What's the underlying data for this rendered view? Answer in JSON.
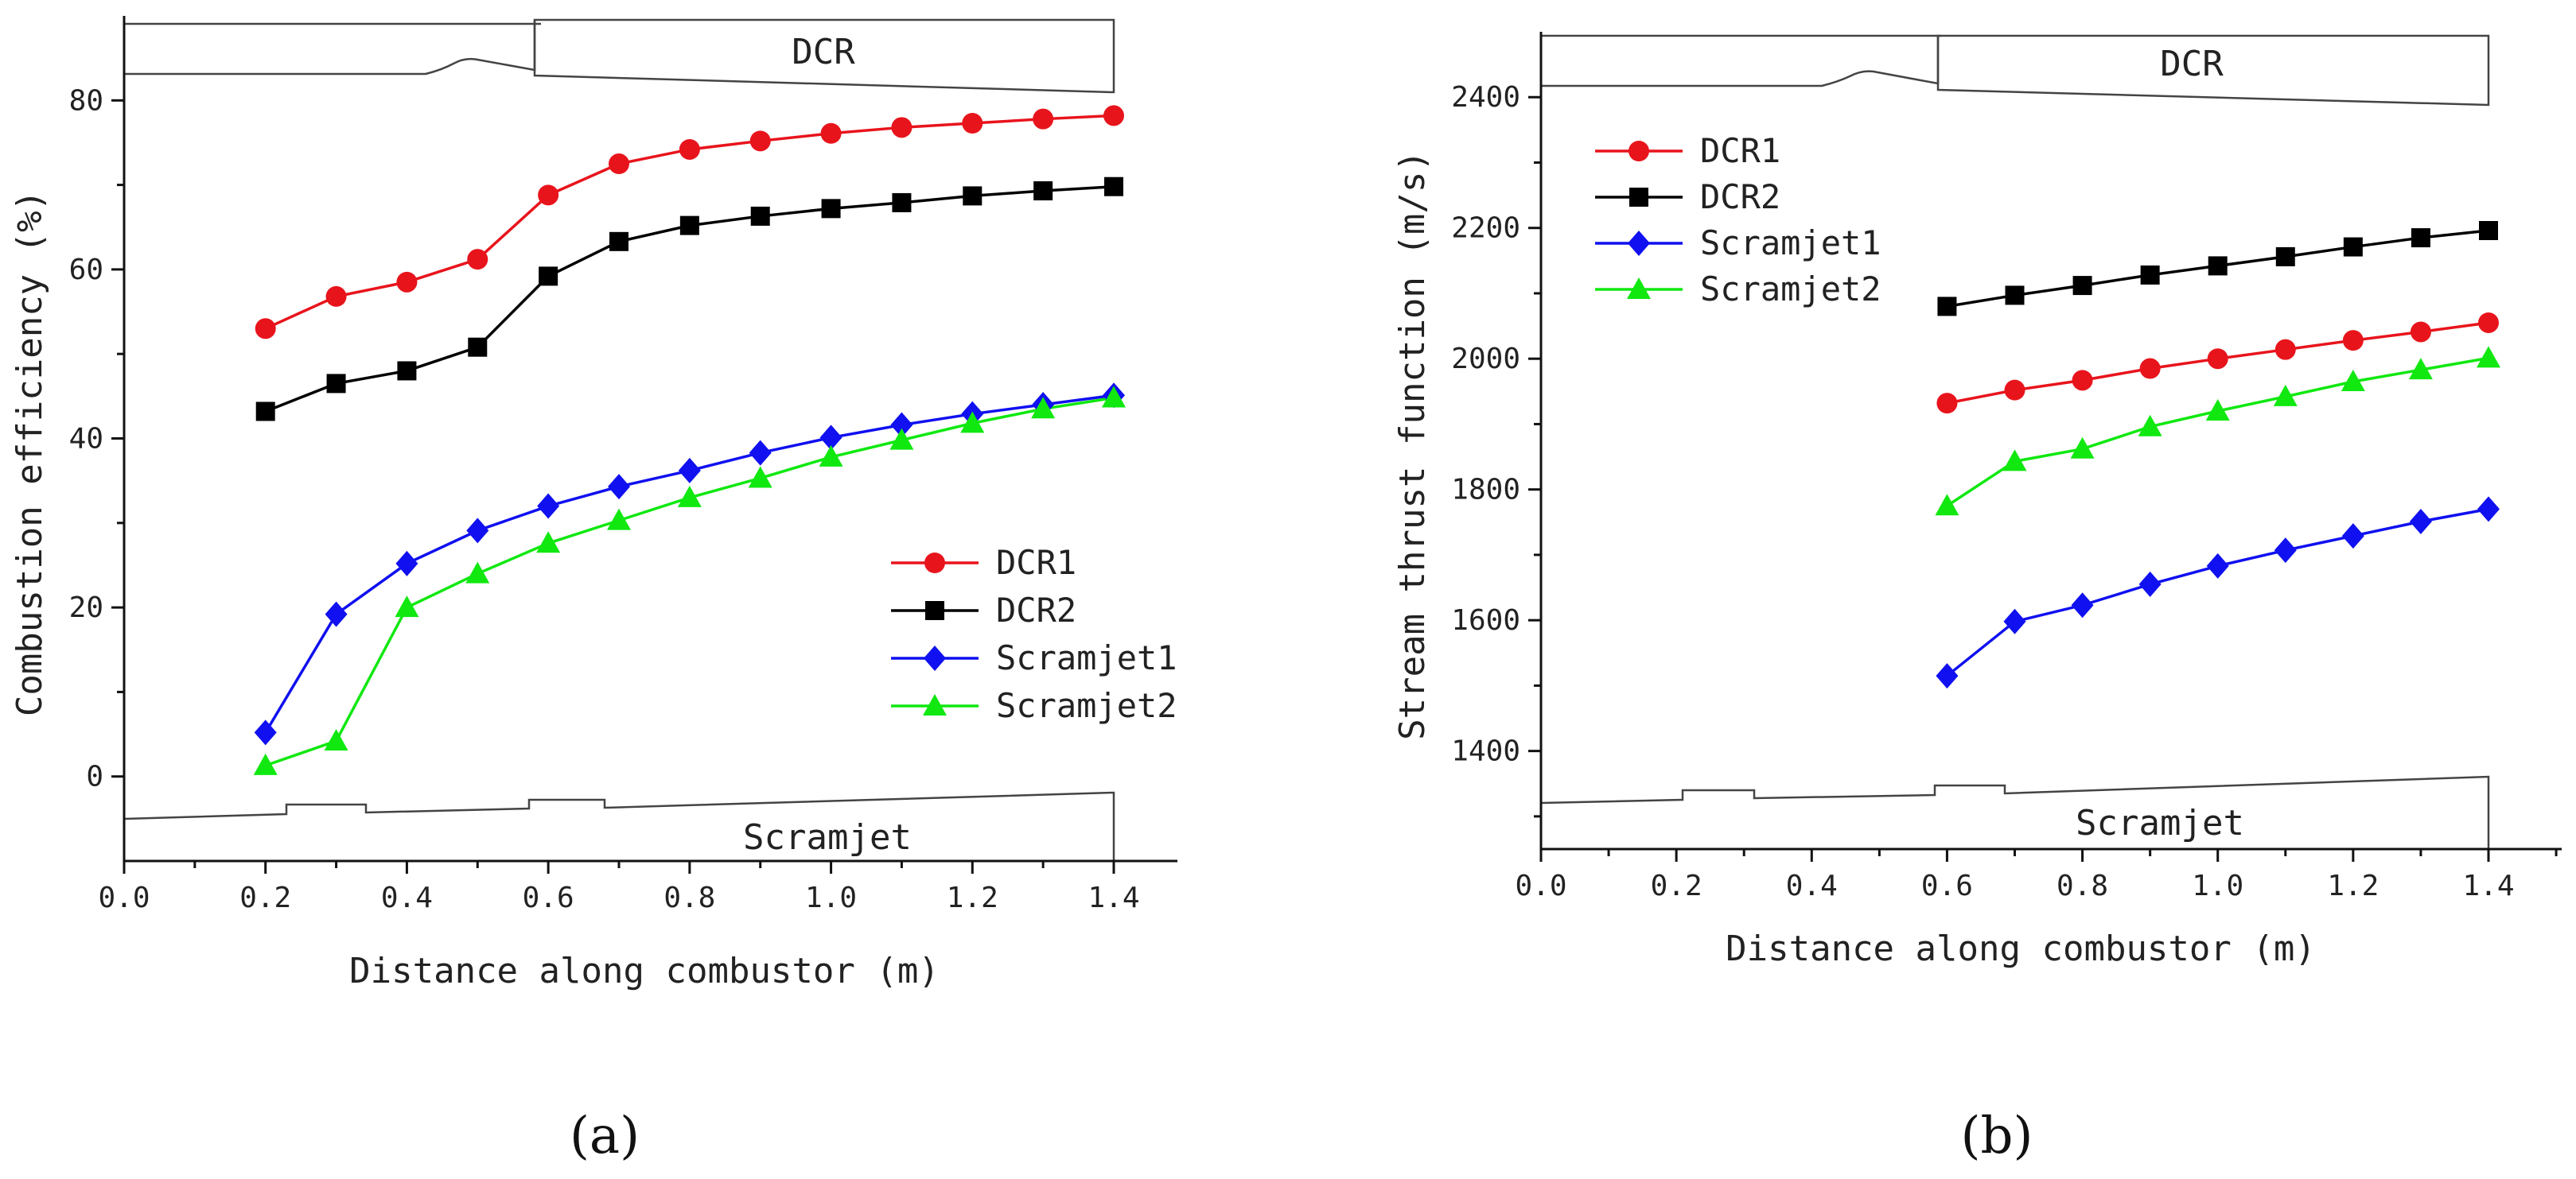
{
  "chart_data": [
    {
      "type": "line",
      "panel_label": "(a)",
      "xlabel": "Distance along combustor (m)",
      "ylabel": "Combustion efficiency (%)",
      "xlim": [
        0.0,
        1.5
      ],
      "ylim": [
        -10,
        90
      ],
      "xticks": [
        0.0,
        0.2,
        0.4,
        0.6,
        0.8,
        1.0,
        1.2,
        1.4
      ],
      "xtick_labels": [
        "0.0",
        "0.2",
        "0.4",
        "0.6",
        "0.8",
        "1.0",
        "1.2",
        "1.4"
      ],
      "yticks": [
        0,
        20,
        40,
        60,
        80
      ],
      "ytick_labels": [
        "0",
        "20",
        "40",
        "60",
        "80"
      ],
      "legend": "center-right",
      "geometry_labels": {
        "top": "DCR",
        "bottom": "Scramjet"
      },
      "x": [
        0.2,
        0.3,
        0.4,
        0.5,
        0.6,
        0.7,
        0.8,
        0.9,
        1.0,
        1.1,
        1.2,
        1.3,
        1.4
      ],
      "series": [
        {
          "name": "DCR1",
          "color": "#e8141c",
          "marker": "circle",
          "values": [
            53.0,
            56.8,
            58.5,
            61.2,
            68.8,
            72.5,
            74.2,
            75.2,
            76.1,
            76.8,
            77.3,
            77.8,
            78.2
          ]
        },
        {
          "name": "DCR2",
          "color": "#000000",
          "marker": "square",
          "values": [
            43.2,
            46.5,
            48.0,
            50.8,
            59.2,
            63.3,
            65.2,
            66.3,
            67.2,
            67.9,
            68.7,
            69.3,
            69.8
          ]
        },
        {
          "name": "Scramjet1",
          "color": "#1010f0",
          "marker": "diamond",
          "values": [
            5.2,
            19.2,
            25.2,
            29.1,
            32.0,
            34.3,
            36.2,
            38.3,
            40.1,
            41.6,
            42.9,
            44.0,
            45.1
          ]
        },
        {
          "name": "Scramjet2",
          "color": "#10e810",
          "marker": "triangle",
          "values": [
            1.3,
            4.2,
            20.0,
            24.0,
            27.6,
            30.3,
            33.0,
            35.3,
            37.8,
            39.8,
            41.8,
            43.5,
            44.8
          ]
        }
      ]
    },
    {
      "type": "line",
      "panel_label": "(b)",
      "xlabel": "Distance along combustor (m)",
      "ylabel": "Stream thrust function (m/s)",
      "xlim": [
        0.0,
        1.5
      ],
      "ylim": [
        1250,
        2500
      ],
      "xticks": [
        0.0,
        0.2,
        0.4,
        0.6,
        0.8,
        1.0,
        1.2,
        1.4
      ],
      "xtick_labels": [
        "0.0",
        "0.2",
        "0.4",
        "0.6",
        "0.8",
        "1.0",
        "1.2",
        "1.4"
      ],
      "yticks": [
        1400,
        1600,
        1800,
        2000,
        2200,
        2400
      ],
      "ytick_labels": [
        "1400",
        "1600",
        "1800",
        "2000",
        "2200",
        "2400"
      ],
      "legend": "top-left",
      "geometry_labels": {
        "top": "DCR",
        "bottom": "Scramjet"
      },
      "x": [
        0.6,
        0.7,
        0.8,
        0.9,
        1.0,
        1.1,
        1.2,
        1.3,
        1.4
      ],
      "series": [
        {
          "name": "DCR1",
          "color": "#e8141c",
          "marker": "circle",
          "values": [
            1932,
            1952,
            1967,
            1985,
            2000,
            2014,
            2028,
            2041,
            2055
          ]
        },
        {
          "name": "DCR2",
          "color": "#000000",
          "marker": "square",
          "values": [
            2080,
            2097,
            2112,
            2128,
            2142,
            2156,
            2171,
            2185,
            2196
          ]
        },
        {
          "name": "Scramjet1",
          "color": "#1010f0",
          "marker": "diamond",
          "values": [
            1515,
            1598,
            1623,
            1655,
            1683,
            1707,
            1729,
            1751,
            1770
          ]
        },
        {
          "name": "Scramjet2",
          "color": "#10e810",
          "marker": "triangle",
          "values": [
            1775,
            1843,
            1862,
            1896,
            1920,
            1942,
            1965,
            1983,
            2001
          ]
        }
      ]
    }
  ]
}
